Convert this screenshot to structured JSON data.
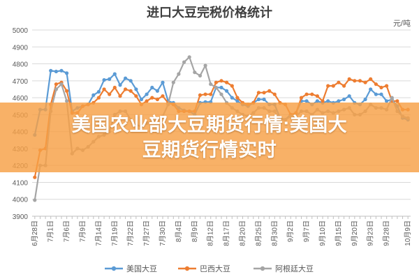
{
  "chart_data": {
    "type": "line",
    "title": "进口大豆完税价格统计",
    "unit_label": "元/吨",
    "ylim": [
      3900,
      5000
    ],
    "yticks": [
      3900,
      4000,
      4100,
      4200,
      4300,
      4400,
      4500,
      4600,
      4700,
      4800,
      4900,
      5000
    ],
    "grid": "horizontal",
    "legend": "bottom",
    "x": [
      "6月28日",
      "6月29日",
      "6月30日",
      "7月1日",
      "7月2日",
      "7月5日",
      "7月6日",
      "7月7日",
      "7月8日",
      "7月9日",
      "7月12日",
      "7月13日",
      "7月14日",
      "7月15日",
      "7月16日",
      "7月19日",
      "7月20日",
      "7月21日",
      "7月22日",
      "7月23日",
      "7月26日",
      "7月27日",
      "7月28日",
      "7月29日",
      "7月30日",
      "8月2日",
      "8月3日",
      "8月4日",
      "8月5日",
      "8月6日",
      "8月9日",
      "8月10日",
      "8月11日",
      "8月12日",
      "8月13日",
      "8月16日",
      "8月17日",
      "8月18日",
      "8月19日",
      "8月20日",
      "8月23日",
      "8月24日",
      "8月25日",
      "8月26日",
      "8月27日",
      "8月30日",
      "8月31日",
      "9月1日",
      "9月2日",
      "9月3日",
      "9月6日",
      "9月7日",
      "9月8日",
      "9月9日",
      "9月10日",
      "9月13日",
      "9月14日",
      "9月15日",
      "9月16日",
      "9月17日",
      "9月20日",
      "9月21日",
      "9月22日",
      "9月23日",
      "9月24日",
      "9月27日",
      "9月28日",
      "9月29日",
      "9月30日",
      "10月8日",
      "10月9日"
    ],
    "x_tick_labels": [
      "6月28日",
      "7月1日",
      "7月6日",
      "7月9日",
      "7月14日",
      "7月19日",
      "7月22日",
      "7月27日",
      "7月30日",
      "8月4日",
      "8月9日",
      "8月12日",
      "8月17日",
      "8月20日",
      "8月25日",
      "8月30日",
      "9月2日",
      "9月7日",
      "9月10日",
      "9月15日",
      "9月20日",
      "9月23日",
      "9月28日",
      "10月9日"
    ],
    "series": [
      {
        "name": "美国大豆",
        "color": "#5B9BD5",
        "values": [
          4380,
          4530,
          4530,
          4760,
          4755,
          4760,
          4745,
          4520,
          4540,
          4550,
          4560,
          4615,
          4635,
          4705,
          4710,
          4740,
          4675,
          4715,
          4700,
          4650,
          4590,
          4620,
          4660,
          4640,
          4690,
          4580,
          4570,
          4540,
          4525,
          4520,
          4500,
          4570,
          4575,
          4575,
          4660,
          4660,
          4640,
          4600,
          4580,
          4560,
          4550,
          4570,
          4590,
          4590,
          4560,
          4560,
          4480,
          4470,
          4500,
          4510,
          4580,
          4580,
          4560,
          4580,
          4570,
          4580,
          4570,
          4580,
          4590,
          4610,
          4570,
          4560,
          4590,
          4650,
          4620,
          4620,
          4580,
          4590,
          4550,
          4480,
          4470
        ]
      },
      {
        "name": "巴西大豆",
        "color": "#ED7D31",
        "values": [
          4130,
          4290,
          4300,
          4560,
          4680,
          4690,
          4640,
          4510,
          4510,
          4550,
          4560,
          4570,
          4600,
          4650,
          4620,
          4660,
          4610,
          4650,
          4640,
          4610,
          4560,
          4580,
          4600,
          4590,
          4610,
          4570,
          4560,
          4520,
          4520,
          4520,
          4520,
          4615,
          4620,
          4620,
          4690,
          4700,
          4690,
          4670,
          4600,
          4570,
          4560,
          4570,
          4630,
          4630,
          4640,
          4620,
          4570,
          4560,
          4500,
          4510,
          4600,
          4620,
          4620,
          4610,
          4580,
          4670,
          4670,
          4690,
          4670,
          4710,
          4700,
          4700,
          4690,
          4710,
          4680,
          4660,
          4670,
          4580,
          4580,
          4530,
          4530
        ]
      },
      {
        "name": "阿根廷大豆",
        "color": "#A5A5A5",
        "values": [
          3995,
          4200,
          4200,
          4520,
          4650,
          4680,
          4580,
          4270,
          4300,
          4290,
          4310,
          4340,
          4370,
          4380,
          4400,
          4500,
          4520,
          4520,
          4470,
          4440,
          4430,
          4450,
          4460,
          4470,
          4490,
          4560,
          4690,
          4740,
          4810,
          4840,
          4750,
          4730,
          4790,
          4680,
          4660,
          4620,
          4570,
          4540,
          4520,
          4500,
          4490,
          4510,
          4540,
          4540,
          4520,
          4520,
          4470,
          4470,
          4490,
          4490,
          4520,
          4520,
          4500,
          4530,
          4510,
          4520,
          4510,
          4520,
          4530,
          4540,
          4500,
          4500,
          4520,
          4560,
          4540,
          4540,
          4530,
          4600,
          4520,
          4490,
          4480
        ]
      }
    ]
  },
  "banner": {
    "line1": "美国农业部大豆期货行情:美国大",
    "line2": "豆期货行情实时"
  }
}
